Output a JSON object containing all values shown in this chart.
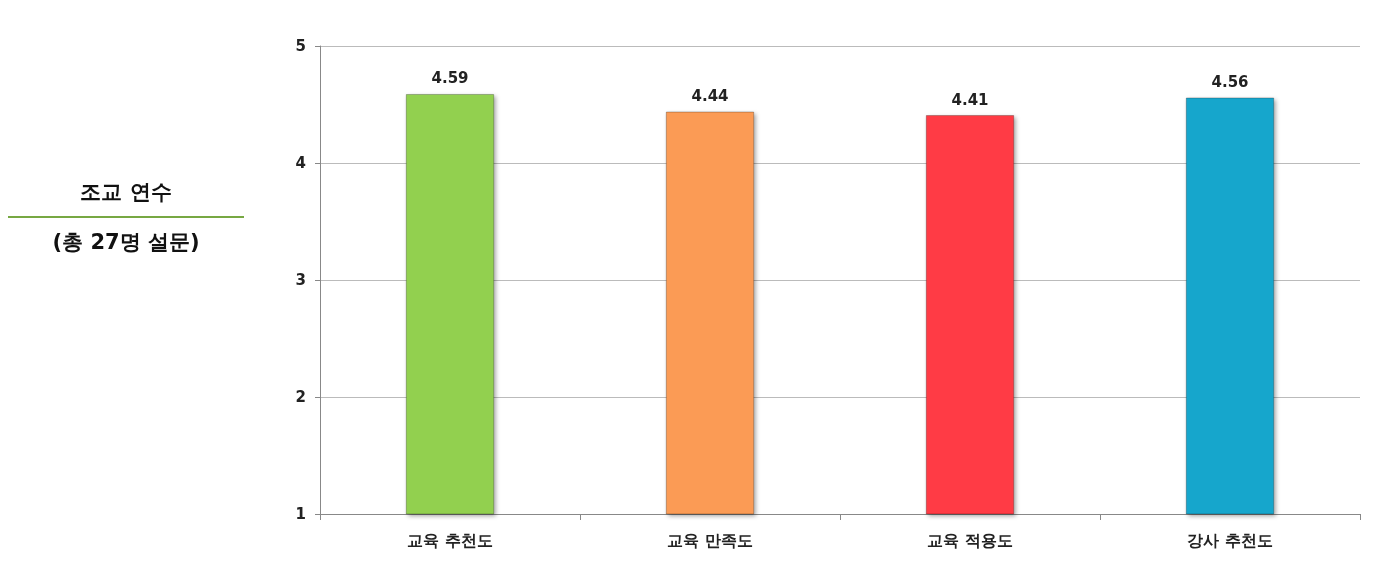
{
  "chart_data": {
    "type": "bar",
    "title": "조교 연수",
    "subtitle": "(총 27명 설문)",
    "categories": [
      "교육 추천도",
      "교육 만족도",
      "교육 적용도",
      "강사 추천도"
    ],
    "values": [
      4.59,
      4.44,
      4.41,
      4.56
    ],
    "colors": [
      "#92d050",
      "#fb9b55",
      "#ff3b44",
      "#17a6cc"
    ],
    "ylim": [
      1,
      5
    ],
    "yticks": [
      1,
      2,
      3,
      4,
      5
    ],
    "grid": "y",
    "data_labels": true
  }
}
